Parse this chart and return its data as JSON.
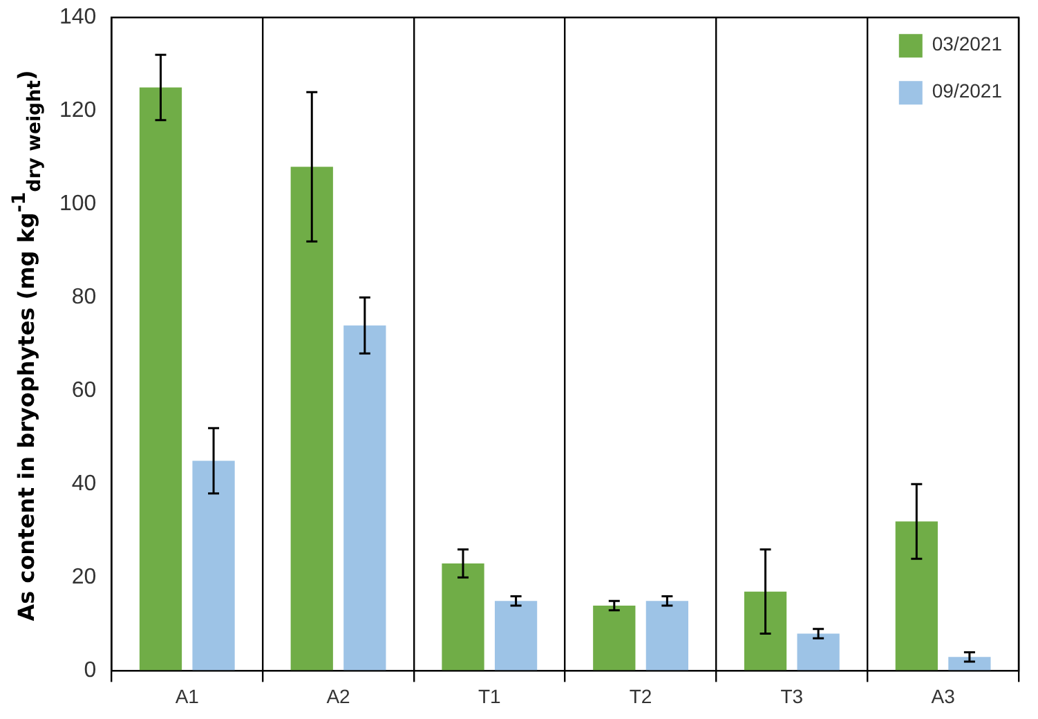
{
  "chart_data": {
    "type": "bar",
    "ylabel": "As content in bryophytes (mg kg$^{-1}$$_{dry weight}$)",
    "categories": [
      "A1",
      "A2",
      "T1",
      "T2",
      "T3",
      "A3"
    ],
    "series": [
      {
        "name": "03/2021",
        "color": "#70ad47",
        "values": [
          125,
          108,
          23,
          14,
          17,
          32
        ],
        "errors": [
          7,
          16,
          3,
          1,
          9,
          8
        ]
      },
      {
        "name": "09/2021",
        "color": "#9dc3e6",
        "values": [
          45,
          74,
          15,
          15,
          8,
          3
        ],
        "errors": [
          7,
          6,
          1,
          1,
          1,
          1
        ]
      }
    ],
    "ylim": [
      0,
      140
    ],
    "yticks": [
      0,
      20,
      40,
      60,
      80,
      100,
      120,
      140
    ],
    "grid": "x",
    "legend": "top right"
  }
}
